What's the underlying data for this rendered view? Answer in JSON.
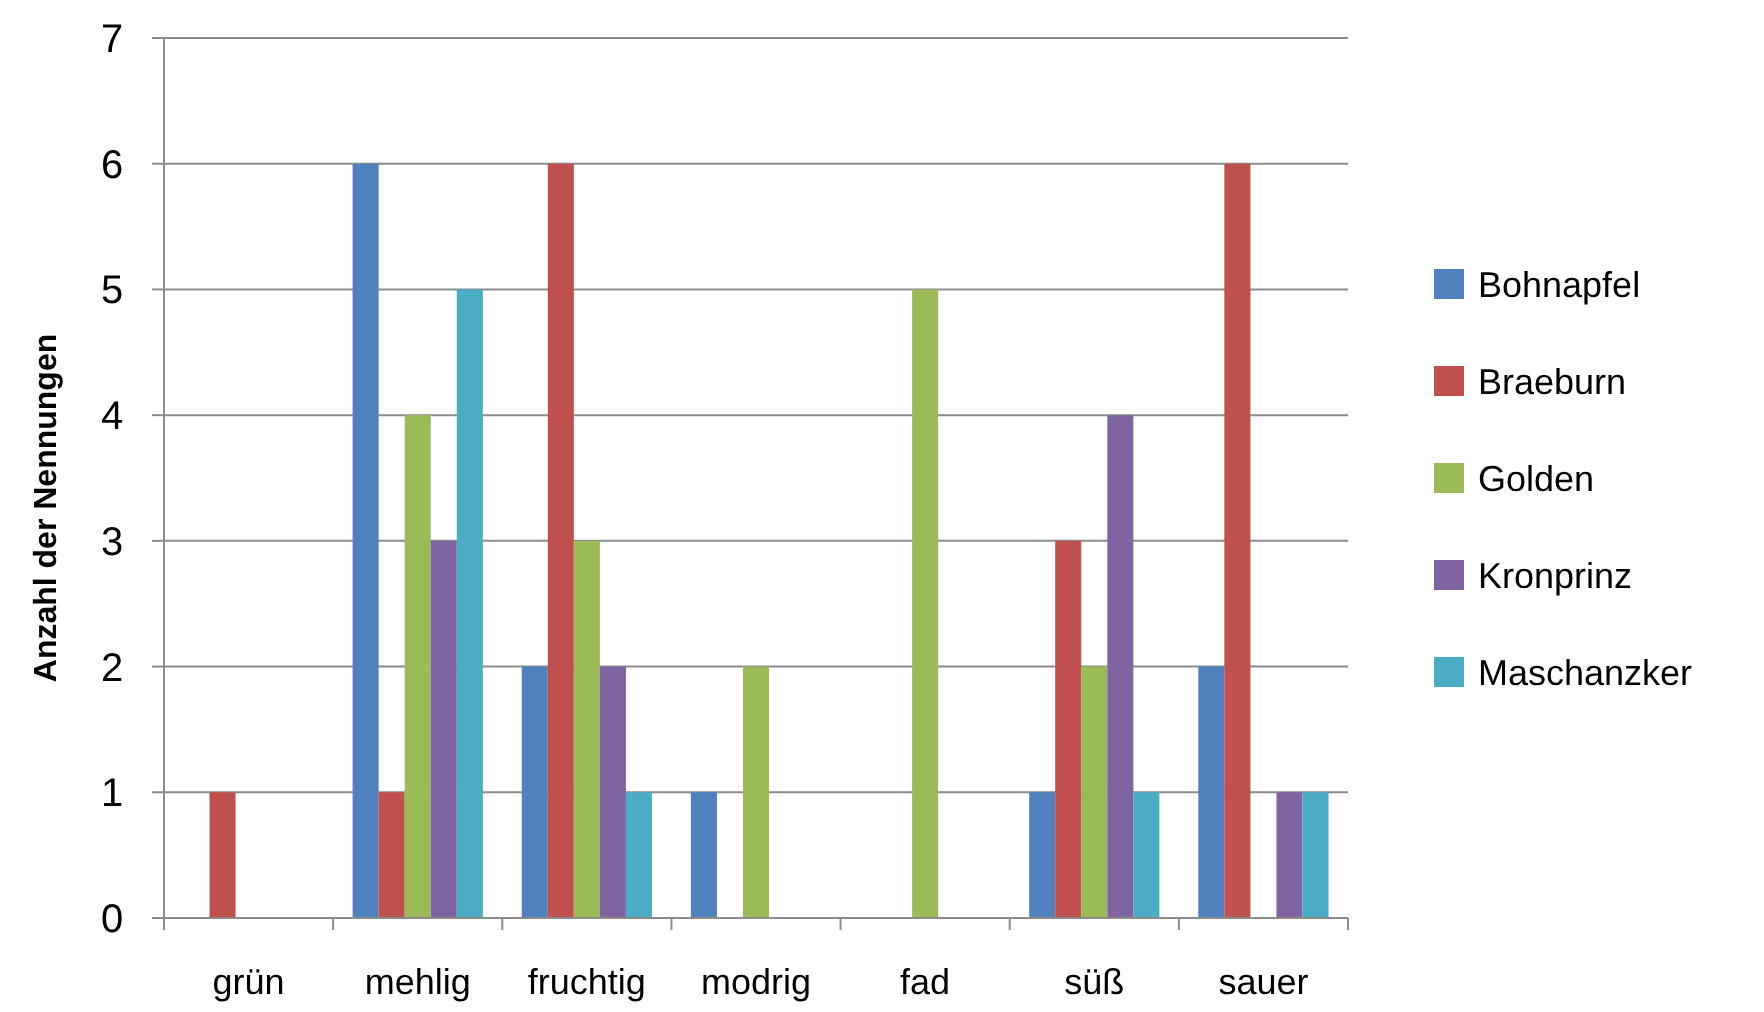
{
  "chart_data": {
    "type": "bar",
    "ylabel": "Anzahl der Nennungen",
    "categories": [
      "grün",
      "mehlig",
      "fruchtig",
      "modrig",
      "fad",
      "süß",
      "sauer"
    ],
    "series": [
      {
        "name": "Bohnapfel",
        "color": "#4f81bd",
        "values": [
          0,
          6,
          2,
          1,
          0,
          1,
          2
        ]
      },
      {
        "name": "Braeburn",
        "color": "#c0504d",
        "values": [
          1,
          1,
          6,
          0,
          0,
          3,
          6
        ]
      },
      {
        "name": "Golden",
        "color": "#9bbb59",
        "values": [
          0,
          4,
          3,
          2,
          5,
          2,
          0
        ]
      },
      {
        "name": "Kronprinz",
        "color": "#8064a2",
        "values": [
          0,
          3,
          2,
          0,
          0,
          4,
          1
        ]
      },
      {
        "name": "Maschanzker",
        "color": "#4bacc6",
        "values": [
          0,
          5,
          1,
          0,
          0,
          1,
          1
        ]
      }
    ],
    "ylim": [
      0,
      7
    ],
    "yticks": [
      0,
      1,
      2,
      3,
      4,
      5,
      6,
      7
    ],
    "grid": "y",
    "legend": "right"
  }
}
